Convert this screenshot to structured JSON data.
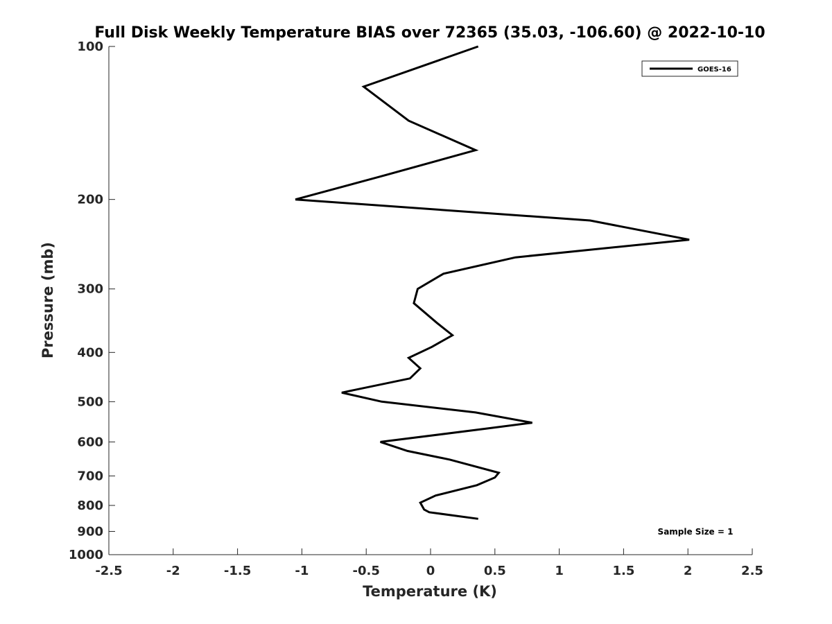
{
  "chart_data": {
    "type": "line",
    "title": "Full Disk Weekly Temperature BIAS over 72365 (35.03, -106.60) @ 2022-10-10",
    "xlabel": "Temperature (K)",
    "ylabel": "Pressure (mb)",
    "xlim": [
      -2.5,
      2.5
    ],
    "ylim": [
      1000,
      100
    ],
    "y_scale": "log",
    "y_reversed": true,
    "grid": false,
    "legend_position": "top-right",
    "x_ticks": [
      -2.5,
      -2,
      -1.5,
      -1,
      -0.5,
      0,
      0.5,
      1,
      1.5,
      2,
      2.5
    ],
    "x_tick_labels": [
      "-2.5",
      "-2",
      "-1.5",
      "-1",
      "-0.5",
      "0",
      "0.5",
      "1",
      "1.5",
      "2",
      "2.5"
    ],
    "y_ticks": [
      100,
      200,
      300,
      400,
      500,
      600,
      700,
      800,
      900,
      1000
    ],
    "y_tick_labels": [
      "100",
      "200",
      "300",
      "400",
      "500",
      "600",
      "700",
      "800",
      "900",
      "1000"
    ],
    "series": [
      {
        "name": "GOES-16",
        "color": "#000000",
        "points": [
          {
            "x": 0.37,
            "y": 100
          },
          {
            "x": -0.52,
            "y": 120
          },
          {
            "x": -0.17,
            "y": 140
          },
          {
            "x": 0.35,
            "y": 160
          },
          {
            "x": -0.38,
            "y": 180
          },
          {
            "x": -1.05,
            "y": 200
          },
          {
            "x": 1.24,
            "y": 220
          },
          {
            "x": 2.01,
            "y": 240
          },
          {
            "x": 0.66,
            "y": 260
          },
          {
            "x": 0.1,
            "y": 280
          },
          {
            "x": -0.1,
            "y": 300
          },
          {
            "x": -0.13,
            "y": 320
          },
          {
            "x": 0.05,
            "y": 350
          },
          {
            "x": 0.17,
            "y": 370
          },
          {
            "x": 0.01,
            "y": 390
          },
          {
            "x": -0.17,
            "y": 410
          },
          {
            "x": -0.08,
            "y": 430
          },
          {
            "x": -0.16,
            "y": 450
          },
          {
            "x": -0.69,
            "y": 480
          },
          {
            "x": -0.38,
            "y": 500
          },
          {
            "x": 0.35,
            "y": 525
          },
          {
            "x": 0.79,
            "y": 550
          },
          {
            "x": 0.43,
            "y": 565
          },
          {
            "x": -0.39,
            "y": 600
          },
          {
            "x": -0.18,
            "y": 625
          },
          {
            "x": 0.15,
            "y": 650
          },
          {
            "x": 0.53,
            "y": 690
          },
          {
            "x": 0.5,
            "y": 705
          },
          {
            "x": 0.36,
            "y": 730
          },
          {
            "x": 0.04,
            "y": 765
          },
          {
            "x": -0.08,
            "y": 790
          },
          {
            "x": -0.05,
            "y": 815
          },
          {
            "x": -0.01,
            "y": 825
          },
          {
            "x": 0.37,
            "y": 850
          }
        ]
      }
    ],
    "annotation": "Sample Size = 1"
  }
}
